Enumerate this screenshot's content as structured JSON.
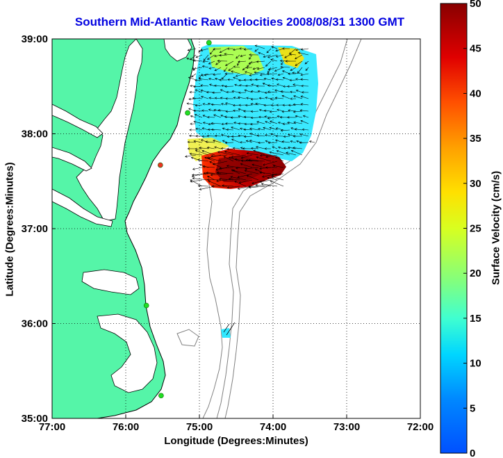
{
  "title": "Southern Mid-Atlantic Raw Velocities 2008/08/31 1300 GMT",
  "xlabel": "Longitude (Degrees:Minutes)",
  "ylabel": "Latitude (Degrees:Minutes)",
  "colorbar": {
    "label": "Surface Velocity (cm/s)",
    "min": 0,
    "max": 50,
    "ticks": [
      "0",
      "5",
      "10",
      "15",
      "20",
      "25",
      "30",
      "35",
      "40",
      "45",
      "50"
    ]
  },
  "map": {
    "xlim": [
      -77,
      -72
    ],
    "ylim": [
      35,
      39
    ],
    "x_ticks": [
      {
        "value": -77,
        "label": "77:00"
      },
      {
        "value": -76,
        "label": "76:00"
      },
      {
        "value": -75,
        "label": "75:00"
      },
      {
        "value": -74,
        "label": "74:00"
      },
      {
        "value": -73,
        "label": "73:00"
      },
      {
        "value": -72,
        "label": "72:00"
      }
    ],
    "y_ticks": [
      {
        "value": 39,
        "label": "39:00"
      },
      {
        "value": 38,
        "label": "38:00"
      },
      {
        "value": 37,
        "label": "37:00"
      },
      {
        "value": 36,
        "label": "36:00"
      },
      {
        "value": 35,
        "label": "35:00"
      }
    ],
    "grid": "dotted",
    "colors": {
      "land": "#55f5a8",
      "water": "#ffffff",
      "contour": "#808080",
      "coast": "#000000",
      "station": "#22dd22",
      "station_alt": "#ee3322"
    },
    "stations": [
      {
        "lon": -74.87,
        "lat": 38.96,
        "color": "#22dd22"
      },
      {
        "lon": -75.16,
        "lat": 38.22,
        "color": "#22dd22"
      },
      {
        "lon": -75.53,
        "lat": 37.67,
        "color": "#ee3322"
      },
      {
        "lon": -75.72,
        "lat": 36.19,
        "color": "#22dd22"
      },
      {
        "lon": -75.52,
        "lat": 35.24,
        "color": "#22dd22"
      }
    ]
  }
}
